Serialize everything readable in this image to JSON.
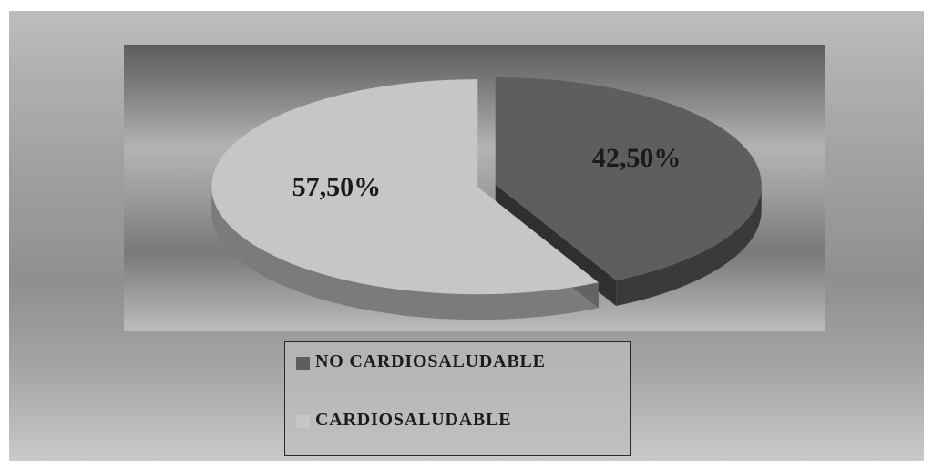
{
  "chart_data": {
    "type": "pie",
    "categories": [
      "NO CARDIOSALUDABLE",
      "CARDIOSALUDABLE"
    ],
    "values": [
      42.5,
      57.5
    ],
    "labels": [
      "42,50%",
      "57,50%"
    ],
    "colors": [
      "#5e5e5e",
      "#c6c6c6"
    ],
    "exploded": true,
    "three_d": true,
    "legend": {
      "position": "bottom",
      "entries": [
        "NO CARDIOSALUDABLE",
        "CARDIOSALUDABLE"
      ]
    }
  }
}
